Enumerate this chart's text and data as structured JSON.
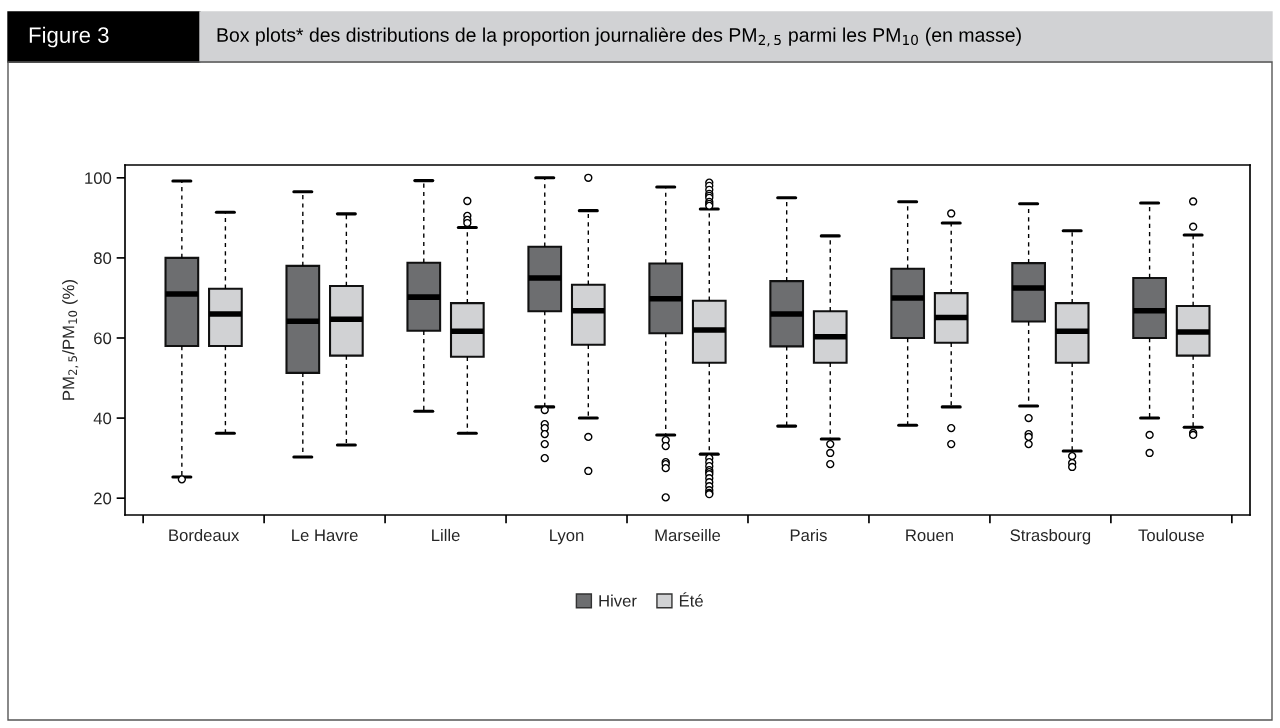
{
  "chart_data": {
    "type": "box",
    "title": "Figure 3",
    "subtitle": "Box plots* des distributions de la proportion journalière des PM$_{2,5}$ parmi les PM$_{10}$ (en masse)",
    "ylabel": "PM$_{2,5}$/PM$_{10}$ (%)",
    "categories": [
      "Bordeaux",
      "Le Havre",
      "Lille",
      "Lyon",
      "Marseille",
      "Paris",
      "Rouen",
      "Strasbourg",
      "Toulouse"
    ],
    "ylim": [
      15.8,
      103.2
    ],
    "yticks": [
      20,
      40,
      60,
      80,
      100
    ],
    "grid": false,
    "legend": "bottom",
    "series": [
      {
        "name": "Hiver",
        "color": "#6d6e70",
        "boxes": [
          {
            "low": 25.3,
            "q1": 58,
            "median": 71,
            "q3": 80,
            "high": 99.2,
            "outliers": [
              24.7
            ]
          },
          {
            "low": 30.3,
            "q1": 51.3,
            "median": 64.2,
            "q3": 78,
            "high": 96.5
          },
          {
            "low": 41.7,
            "q1": 61.8,
            "median": 70.2,
            "q3": 78.8,
            "high": 99.3
          },
          {
            "low": 42.8,
            "q1": 66.7,
            "median": 75,
            "q3": 82.8,
            "high": 100,
            "outliers": [
              42,
              38.5,
              37.5,
              36,
              33.5,
              30
            ]
          },
          {
            "low": 35.8,
            "q1": 61.2,
            "median": 69.8,
            "q3": 78.6,
            "high": 97.7,
            "outliers": [
              34.5,
              33,
              29,
              28.5,
              27.5,
              20.2
            ]
          },
          {
            "low": 38,
            "q1": 57.9,
            "median": 66,
            "q3": 74.2,
            "high": 95
          },
          {
            "low": 38.2,
            "q1": 60,
            "median": 70,
            "q3": 77.3,
            "high": 94
          },
          {
            "low": 43,
            "q1": 64.1,
            "median": 72.5,
            "q3": 78.7,
            "high": 93.5,
            "outliers": [
              40,
              36,
              35.3,
              33.5
            ]
          },
          {
            "low": 40,
            "q1": 60,
            "median": 66.8,
            "q3": 75,
            "high": 93.7,
            "outliers": [
              35.8,
              31.3
            ]
          }
        ]
      },
      {
        "name": "Été",
        "color": "#d1d2d4",
        "boxes": [
          {
            "low": 36.2,
            "q1": 58,
            "median": 66,
            "q3": 72.3,
            "high": 91.4
          },
          {
            "low": 33.3,
            "q1": 55.6,
            "median": 64.7,
            "q3": 73,
            "high": 91
          },
          {
            "low": 36.2,
            "q1": 55.3,
            "median": 61.7,
            "q3": 68.7,
            "high": 87.6,
            "outliers": [
              94.2,
              90.5,
              89.5,
              88.7
            ]
          },
          {
            "low": 40,
            "q1": 58.3,
            "median": 66.8,
            "q3": 73.3,
            "high": 91.8,
            "outliers": [
              100,
              35.3,
              26.8
            ]
          },
          {
            "low": 31,
            "q1": 53.8,
            "median": 62,
            "q3": 69.3,
            "high": 92.2,
            "outliers": [
              98.8,
              98,
              97,
              96,
              95.5,
              95,
              94,
              93.5,
              93,
              30,
              29,
              28,
              27,
              26.5,
              26,
              25,
              24,
              23,
              22,
              21.3,
              21
            ]
          },
          {
            "low": 34.8,
            "q1": 53.8,
            "median": 60.3,
            "q3": 66.7,
            "high": 85.5,
            "outliers": [
              33.5,
              31.3,
              28.5
            ]
          },
          {
            "low": 42.8,
            "q1": 58.8,
            "median": 65.1,
            "q3": 71.2,
            "high": 88.7,
            "outliers": [
              91.1,
              37.5,
              33.5
            ]
          },
          {
            "low": 31.8,
            "q1": 53.8,
            "median": 61.7,
            "q3": 68.7,
            "high": 86.8,
            "outliers": [
              30.5,
              28.8,
              27.8
            ]
          },
          {
            "low": 37.7,
            "q1": 55.6,
            "median": 61.5,
            "q3": 68,
            "high": 85.7,
            "outliers": [
              94.1,
              87.8,
              36.3,
              35.8
            ]
          }
        ]
      }
    ]
  }
}
